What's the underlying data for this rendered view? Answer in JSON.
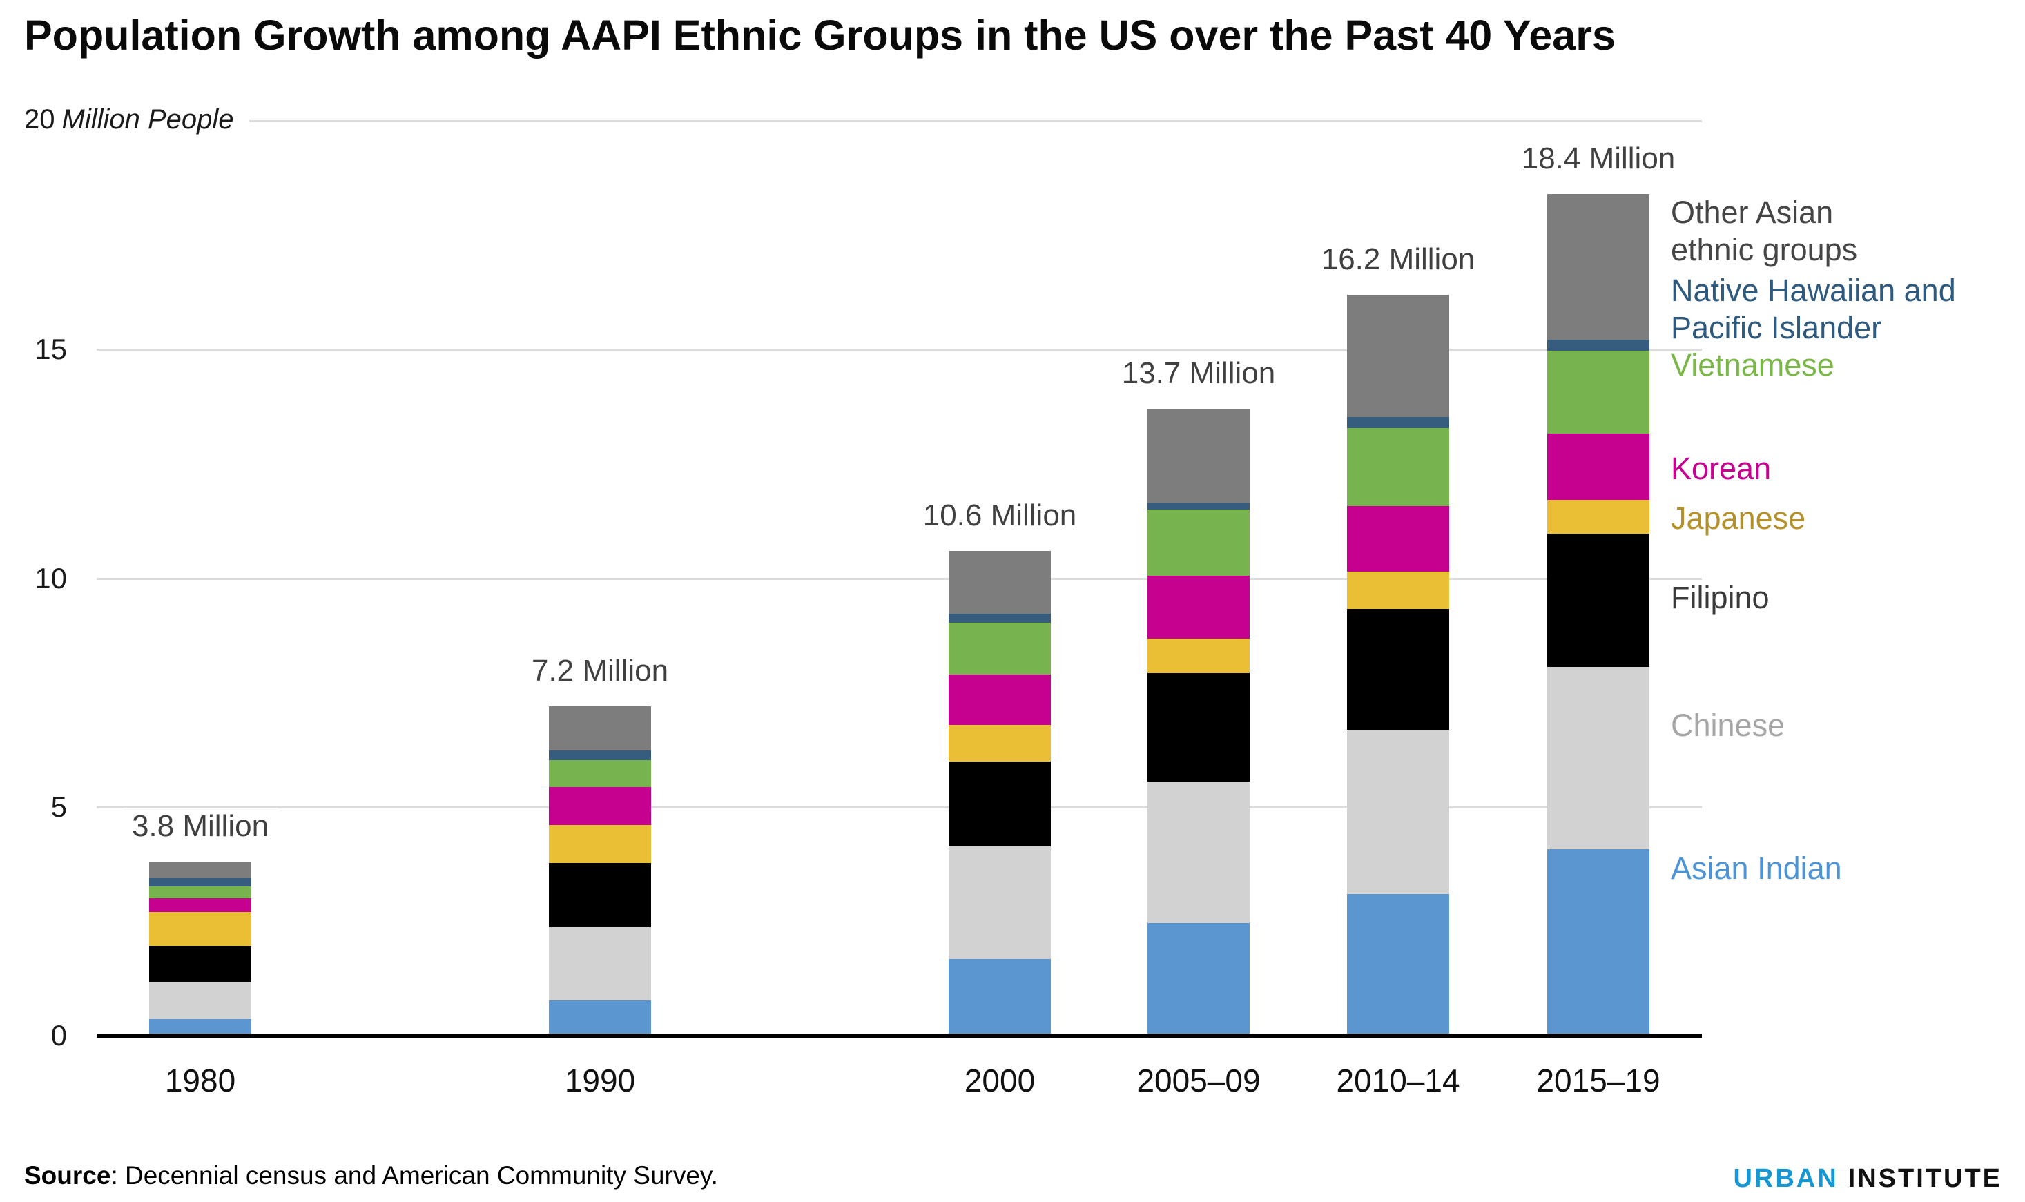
{
  "header": {
    "title": "Population Growth among AAPI Ethnic Groups in the US over the Past 40 Years"
  },
  "chart_data": {
    "type": "bar",
    "stacked": true,
    "grid": true,
    "legend_position": "right",
    "unit_label": {
      "value": "20",
      "unit": "Million People"
    },
    "ylim": [
      0,
      20
    ],
    "y_ticks": [
      0,
      5,
      10,
      15,
      20
    ],
    "categories": [
      "1980",
      "1990",
      "2000",
      "2005–09",
      "2010–14",
      "2015–19"
    ],
    "totals": [
      3.8,
      7.2,
      10.6,
      13.7,
      16.2,
      18.4
    ],
    "totals_labels": [
      "3.8 Million",
      "7.2 Million",
      "10.6 Million",
      "13.7 Million",
      "16.2 Million",
      "18.4 Million"
    ],
    "series": [
      {
        "name": "Asian Indian",
        "color": "#5B96D0",
        "label_color": "#4D94D6",
        "values": [
          0.36,
          0.77,
          1.68,
          2.46,
          3.09,
          4.08
        ]
      },
      {
        "name": "Chinese",
        "color": "#D2D2D2",
        "label_color": "#A6A6A6",
        "values": [
          0.81,
          1.6,
          2.45,
          3.09,
          3.6,
          3.98
        ]
      },
      {
        "name": "Filipino",
        "color": "#000000",
        "label_color": "#3B3B3B",
        "values": [
          0.79,
          1.4,
          1.86,
          2.37,
          2.64,
          2.91
        ]
      },
      {
        "name": "Japanese",
        "color": "#EBBF35",
        "label_color": "#B5912C",
        "values": [
          0.74,
          0.84,
          0.8,
          0.76,
          0.81,
          0.74
        ]
      },
      {
        "name": "Korean",
        "color": "#C6008F",
        "label_color": "#C6008F",
        "values": [
          0.3,
          0.83,
          1.1,
          1.38,
          1.44,
          1.45
        ]
      },
      {
        "name": "Vietnamese",
        "color": "#78B44E",
        "label_color": "#7AB648",
        "values": [
          0.26,
          0.59,
          1.13,
          1.44,
          1.71,
          1.81
        ]
      },
      {
        "name": "Native Hawaiian and Pacific Islander",
        "legend_lines": [
          "Native Hawaiian and",
          "Pacific Islander"
        ],
        "color": "#365C7E",
        "label_color": "#2E5A7F",
        "values": [
          0.18,
          0.2,
          0.2,
          0.15,
          0.24,
          0.25
        ]
      },
      {
        "name": "Other Asian ethnic groups",
        "legend_lines": [
          "Other Asian",
          "ethnic groups"
        ],
        "color": "#7D7D7D",
        "label_color": "#464646",
        "values": [
          0.36,
          0.97,
          1.38,
          2.05,
          2.67,
          3.18
        ]
      }
    ]
  },
  "footer": {
    "source_label": "Source",
    "source_text": ": Decennial census and American Community Survey.",
    "logo": {
      "word1": "URBAN",
      "word2": "INSTITUTE",
      "word1_color": "#1696d2",
      "word2_color": "#111111"
    }
  }
}
